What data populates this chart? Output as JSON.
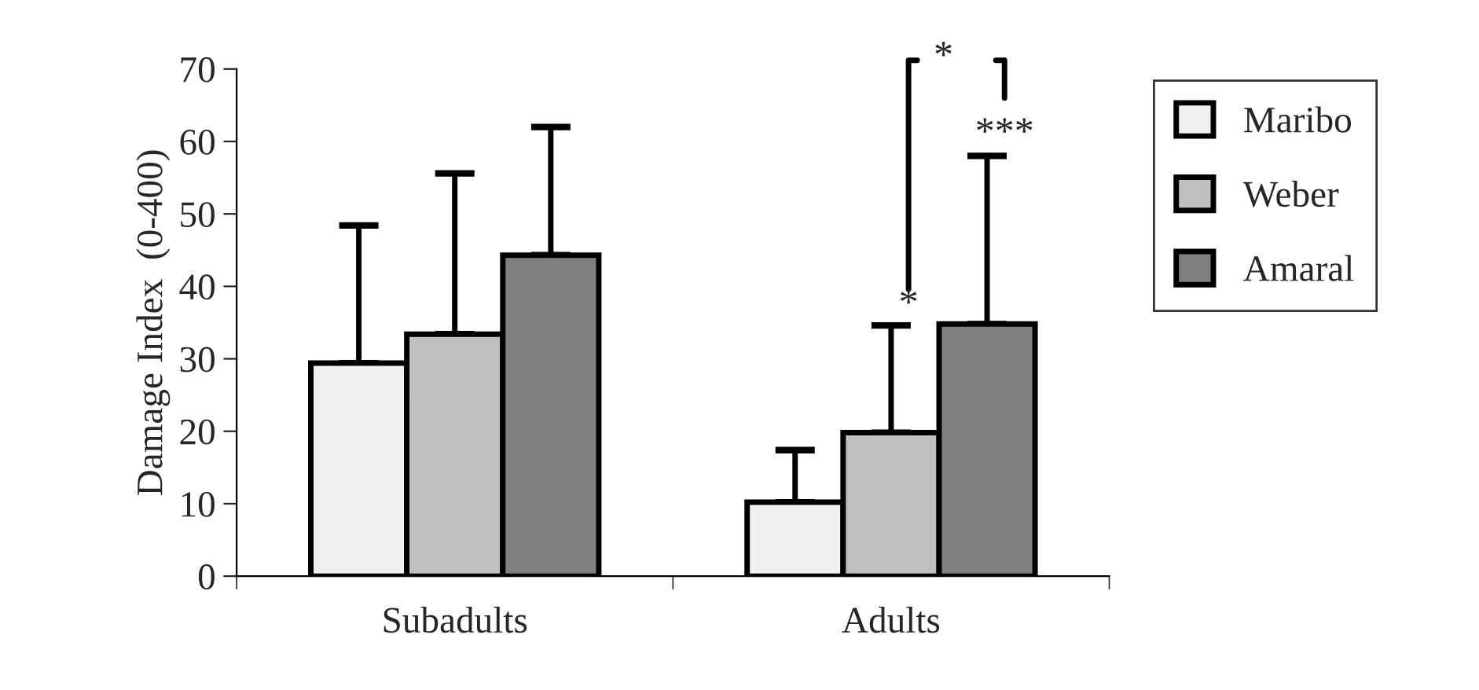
{
  "chart_data": {
    "type": "bar",
    "ylabel": "Damage Index  (0-400)",
    "categories": [
      "Subadults",
      "Adults"
    ],
    "series": [
      {
        "name": "Maribo",
        "color": "#f0f0f0",
        "values": [
          29.4,
          10.2
        ],
        "errors": [
          [
            29.4,
            48.4
          ],
          [
            10.2,
            17.4
          ]
        ]
      },
      {
        "name": "Weber",
        "color": "#c0c0c0",
        "values": [
          33.4,
          19.8
        ],
        "errors": [
          [
            33.4,
            55.6
          ],
          [
            19.8,
            34.6
          ]
        ]
      },
      {
        "name": "Amaral",
        "color": "#808080",
        "values": [
          44.3,
          34.8
        ],
        "errors": [
          [
            44.3,
            62
          ],
          [
            34.8,
            58
          ]
        ]
      }
    ],
    "ylim": [
      0,
      70
    ],
    "yticks": [
      0,
      10,
      20,
      30,
      40,
      50,
      60,
      70
    ],
    "annotations": [
      "*",
      "***",
      "*"
    ],
    "grid": false,
    "legend": "right"
  }
}
